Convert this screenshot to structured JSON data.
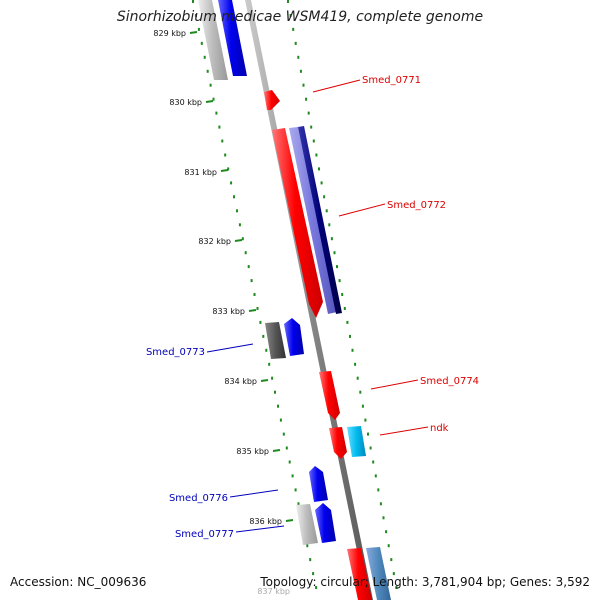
{
  "title": "Sinorhizobium medicae WSM419, complete genome",
  "footer": {
    "accession": "Accession: NC_009636",
    "summary": "Topology: circular; Length: 3,781,904 bp; Genes: 3,592"
  },
  "ticks": [
    "829 kbp",
    "830 kbp",
    "831 kbp",
    "832 kbp",
    "833 kbp",
    "834 kbp",
    "835 kbp",
    "836 kbp",
    "837 kbp"
  ],
  "gene_labels": [
    {
      "text": "Smed_0771",
      "color": "#dd0000"
    },
    {
      "text": "Smed_0772",
      "color": "#dd0000"
    },
    {
      "text": "Smed_0773",
      "color": "#0000bb"
    },
    {
      "text": "Smed_0774",
      "color": "#dd0000"
    },
    {
      "text": "ndk",
      "color": "#dd0000"
    },
    {
      "text": "Smed_0776",
      "color": "#0000bb"
    },
    {
      "text": "Smed_0777",
      "color": "#0000bb"
    }
  ],
  "colors": {
    "backbone": "#888888",
    "forward_dots": "#1f8a1f",
    "red": "#ff0000",
    "blue": "#0000ee",
    "grey": "#bbbbbb",
    "dark_grey": "#555555",
    "navy": "#000077",
    "lavender": "#7777dd",
    "cyan": "#00bbee",
    "steel": "#4f88bb"
  }
}
